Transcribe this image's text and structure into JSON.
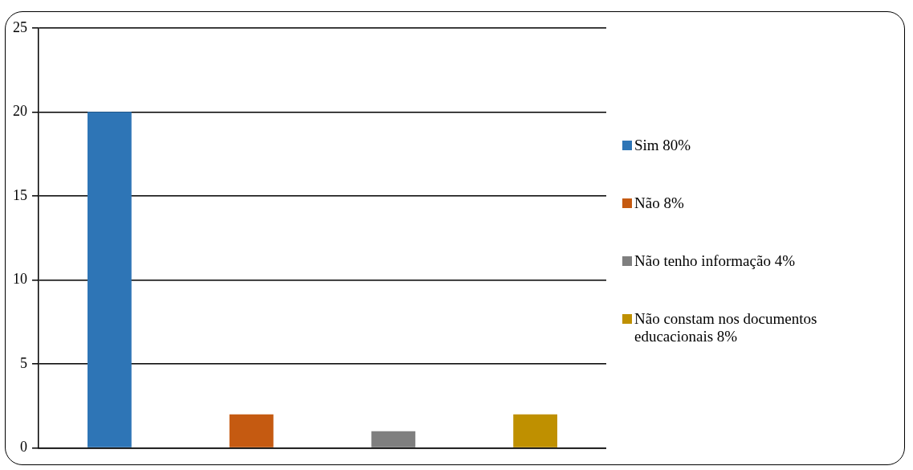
{
  "chart_data": {
    "type": "bar",
    "categories": [
      null,
      null,
      null,
      null
    ],
    "series": [
      {
        "name": "Sim 80%",
        "color": "#2e75b6",
        "values": [
          20,
          null,
          null,
          null
        ]
      },
      {
        "name": "Não 8%",
        "color": "#c55a11",
        "values": [
          null,
          2,
          null,
          null
        ]
      },
      {
        "name": "Não tenho informação 4%",
        "color": "#7f7f7f",
        "values": [
          null,
          null,
          1,
          null
        ]
      },
      {
        "name": "Não constam nos documentos educacionais 8%",
        "color": "#bf9000",
        "values": [
          null,
          null,
          null,
          2
        ]
      }
    ],
    "ylim": [
      0,
      25
    ],
    "yticks": [
      0,
      5,
      10,
      15,
      20,
      25
    ],
    "grid": "y",
    "legend": "right"
  }
}
